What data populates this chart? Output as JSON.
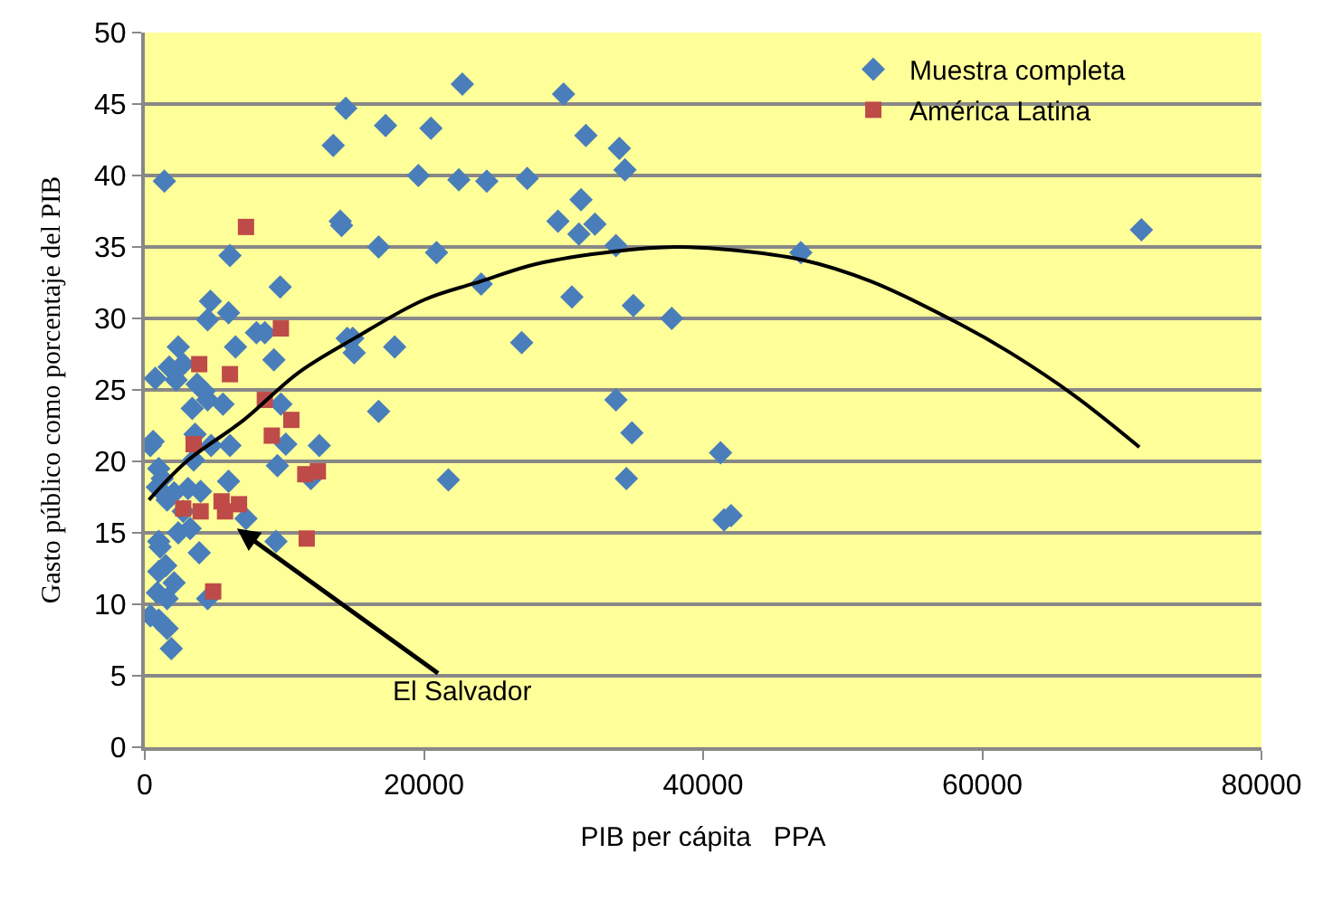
{
  "chart_data": {
    "type": "scatter",
    "xlabel": "PIB per cápita   PPA",
    "ylabel": "Gasto público como porcentaje del PIB",
    "xlim": [
      0,
      80000
    ],
    "xticks": [
      0,
      20000,
      40000,
      60000,
      80000
    ],
    "ylim": [
      0,
      50
    ],
    "yticks": [
      0,
      5,
      10,
      15,
      20,
      25,
      30,
      35,
      40,
      45,
      50
    ],
    "grid": "y",
    "legend": "top right",
    "annotations": [
      {
        "text": "El Salvador",
        "x": 6600,
        "y": 15.3
      }
    ],
    "series": [
      {
        "name": "Muestra completa",
        "color": "#4a7ebb",
        "marker": "diamond",
        "x": [
          14400,
          22750,
          30000,
          17250,
          13500,
          20500,
          31600,
          34000,
          34400,
          19600,
          22500,
          24500,
          27400,
          31250,
          29600,
          31100,
          32250,
          33750,
          14000,
          14100,
          16750,
          20900,
          47000,
          71400,
          24100,
          30600,
          35000,
          37750,
          27000,
          17900,
          14900,
          33750,
          16750,
          34900,
          21750,
          41250,
          34500,
          41500,
          42000,
          1400,
          6100,
          9700,
          4700,
          4500,
          6000,
          8000,
          8600,
          14500,
          15000,
          2400,
          6500,
          9250,
          1750,
          2750,
          750,
          2250,
          3750,
          4250,
          4500,
          5600,
          3400,
          9750,
          400,
          600,
          3600,
          4750,
          6100,
          3500,
          10100,
          12500,
          9500,
          11900,
          1000,
          1250,
          900,
          6000,
          1600,
          2100,
          3100,
          4000,
          2750,
          7250,
          2400,
          3250,
          9400,
          1000,
          1100,
          3900,
          1500,
          1000,
          2100,
          900,
          1600,
          4500,
          400,
          1000,
          1600,
          1900
        ],
        "values": [
          44.7,
          46.4,
          45.7,
          43.5,
          42.1,
          43.3,
          42.8,
          41.9,
          40.4,
          40.0,
          39.7,
          39.6,
          39.8,
          38.3,
          36.8,
          35.9,
          36.6,
          35.1,
          36.8,
          36.5,
          35.0,
          34.6,
          34.6,
          36.2,
          32.4,
          31.5,
          30.9,
          30.0,
          28.3,
          28.0,
          28.6,
          24.3,
          23.5,
          22.0,
          18.7,
          20.6,
          18.8,
          15.9,
          16.2,
          39.6,
          34.4,
          32.2,
          31.2,
          29.9,
          30.4,
          29.0,
          29.0,
          28.6,
          27.6,
          28.0,
          28.0,
          27.1,
          26.6,
          26.8,
          25.8,
          25.7,
          25.4,
          24.9,
          24.3,
          24.0,
          23.7,
          24.0,
          21.1,
          21.4,
          21.9,
          21.1,
          21.1,
          20.1,
          21.2,
          21.1,
          19.7,
          18.8,
          19.5,
          18.8,
          18.2,
          18.6,
          17.3,
          17.8,
          18.1,
          17.9,
          16.5,
          16.0,
          15.0,
          15.3,
          14.4,
          14.4,
          14.0,
          13.6,
          12.7,
          12.3,
          11.5,
          10.8,
          10.4,
          10.4,
          9.2,
          8.9,
          8.3,
          6.9
        ]
      },
      {
        "name": "América Latina",
        "color": "#be4b48",
        "marker": "square",
        "x": [
          7250,
          9750,
          3900,
          6100,
          8600,
          10500,
          3500,
          8750,
          9100,
          11500,
          12400,
          2750,
          4000,
          5500,
          5750,
          6750,
          11600,
          4900
        ],
        "values": [
          36.4,
          29.3,
          26.8,
          26.1,
          24.3,
          22.9,
          21.2,
          null,
          21.8,
          19.1,
          19.3,
          16.7,
          16.5,
          17.2,
          16.5,
          17.0,
          14.6,
          10.9
        ]
      },
      {
        "type": "line",
        "color": "#000000",
        "marker": "none",
        "x": [
          300,
          3000,
          7100,
          11000,
          15000,
          20000,
          24100,
          28000,
          33750,
          38000,
          42000,
          47100,
          52000,
          58400,
          62000,
          66600,
          71250
        ],
        "values": [
          17.3,
          20.0,
          22.9,
          26.2,
          28.6,
          31.3,
          32.6,
          33.8,
          34.7,
          35.0,
          34.8,
          34.1,
          32.6,
          29.6,
          27.6,
          24.6,
          21.0
        ]
      }
    ]
  }
}
